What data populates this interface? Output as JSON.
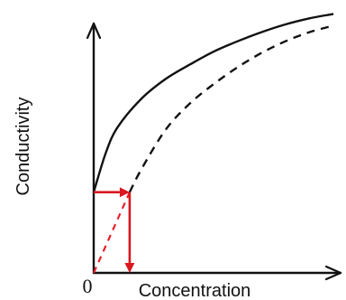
{
  "chart_data": {
    "type": "line",
    "title": "",
    "xlabel": "Concentration",
    "ylabel": "Conductivity",
    "origin_label": "0",
    "xlim": [
      0,
      10
    ],
    "ylim": [
      0,
      10
    ],
    "colors": {
      "axes": "#111111",
      "construction": "#d91820"
    },
    "series": [
      {
        "style": "solid",
        "color": "#111111",
        "x": [
          0.0,
          0.5,
          1.0,
          2.0,
          3.0,
          4.0,
          5.0,
          6.0,
          7.0,
          8.0,
          9.0,
          10.0
        ],
        "y": [
          3.1,
          4.6,
          5.6,
          6.7,
          7.45,
          8.0,
          8.5,
          8.9,
          9.25,
          9.55,
          9.78,
          9.95
        ]
      },
      {
        "style": "dashed",
        "color": "#111111",
        "x": [
          1.5,
          2.0,
          3.0,
          4.0,
          5.0,
          6.0,
          7.0,
          8.0,
          9.0,
          10.0
        ],
        "y": [
          3.1,
          4.0,
          5.5,
          6.5,
          7.25,
          7.9,
          8.45,
          8.9,
          9.25,
          9.5
        ]
      },
      {
        "style": "dashed",
        "color": "#e8202a",
        "x": [
          0.0,
          1.5
        ],
        "y": [
          0.0,
          3.1
        ]
      }
    ],
    "annotations": [
      {
        "type": "arrow",
        "color": "#d91820",
        "from": [
          0.0,
          3.1
        ],
        "to": [
          1.5,
          3.1
        ]
      },
      {
        "type": "arrow",
        "color": "#d91820",
        "from": [
          1.5,
          3.1
        ],
        "to": [
          1.5,
          0.0
        ]
      }
    ]
  }
}
